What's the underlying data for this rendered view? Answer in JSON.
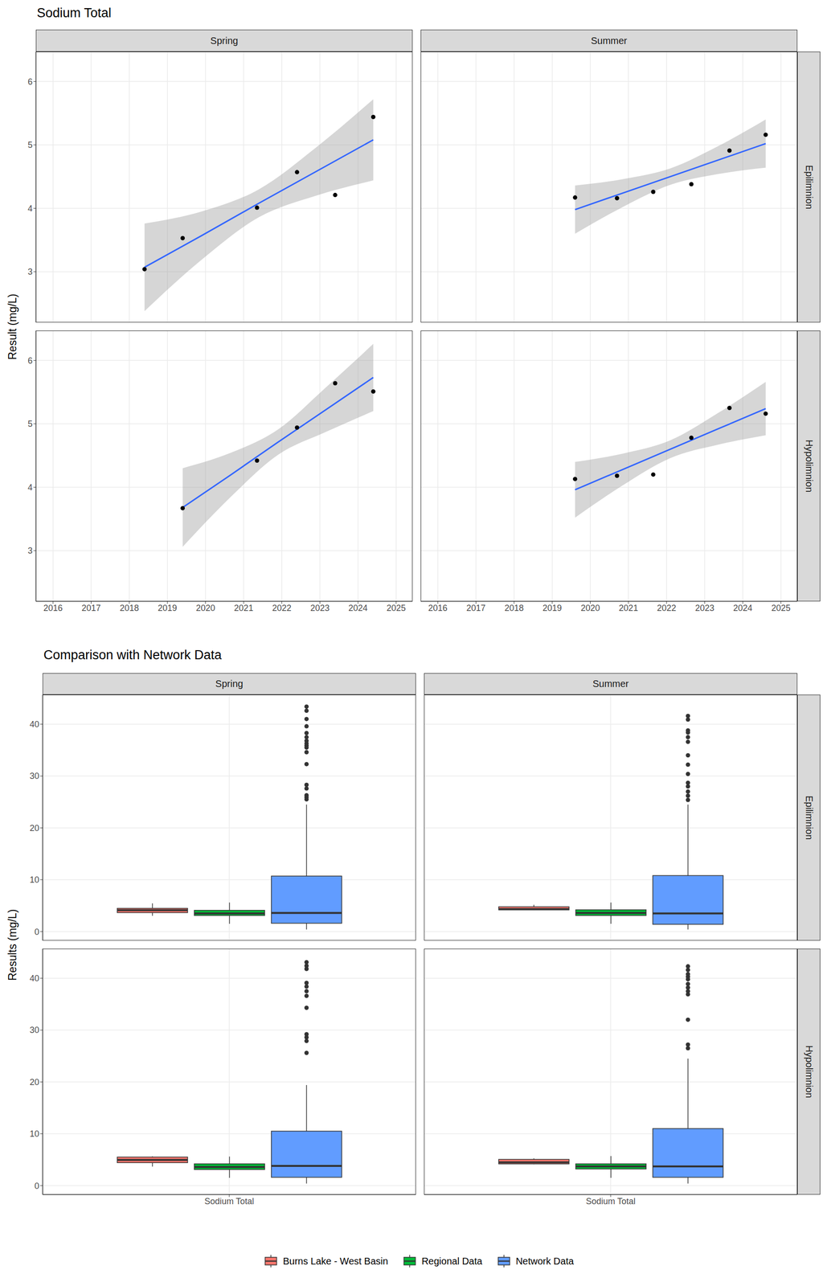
{
  "chart_data": [
    {
      "type": "scatter",
      "title": "Sodium Total",
      "y_label": "Result (mg/L)",
      "columns": [
        "Spring",
        "Summer"
      ],
      "rows": [
        "Epilimnion",
        "Hypolimnion"
      ],
      "xlim": [
        2015.55,
        2025.43
      ],
      "xticks": [
        2016,
        2017,
        2018,
        2019,
        2020,
        2021,
        2022,
        2023,
        2024,
        2025
      ],
      "ylim": [
        2.2,
        6.47
      ],
      "yticks": [
        3,
        4,
        5,
        6
      ],
      "grid": true,
      "panels": [
        {
          "column": "Spring",
          "row": "Epilimnion",
          "points": {
            "x": [
              2018.4,
              2019.4,
              2021.35,
              2022.4,
              2023.4,
              2024.4
            ],
            "y": [
              3.04,
              3.53,
              4.01,
              4.57,
              4.21,
              5.44
            ],
            "color": "#000000",
            "marker": "circle"
          },
          "fit": {
            "x": [
              2018.4,
              2019.9,
              2021.4,
              2022.9,
              2024.4
            ],
            "values": [
              3.07,
              3.57,
              4.08,
              4.58,
              5.08
            ],
            "lower": [
              2.38,
              3.19,
              3.86,
              4.2,
              4.44
            ],
            "upper": [
              3.76,
              3.95,
              4.3,
              4.96,
              5.72
            ],
            "color": "#3366FF"
          }
        },
        {
          "column": "Summer",
          "row": "Epilimnion",
          "points": {
            "x": [
              2019.6,
              2020.7,
              2021.65,
              2022.65,
              2023.65,
              2024.6
            ],
            "y": [
              4.17,
              4.16,
              4.26,
              4.38,
              4.91,
              5.16
            ],
            "color": "#000000",
            "marker": "circle"
          },
          "fit": {
            "x": [
              2019.6,
              2020.85,
              2022.1,
              2023.35,
              2024.6
            ],
            "values": [
              3.98,
              4.24,
              4.5,
              4.76,
              5.02
            ],
            "lower": [
              3.6,
              4.02,
              4.37,
              4.54,
              4.64
            ],
            "upper": [
              4.36,
              4.46,
              4.63,
              4.98,
              5.4
            ],
            "color": "#3366FF"
          }
        },
        {
          "column": "Spring",
          "row": "Hypolimnion",
          "points": {
            "x": [
              2019.4,
              2021.35,
              2022.4,
              2023.4,
              2024.4
            ],
            "y": [
              3.67,
              4.42,
              4.94,
              5.64,
              5.51
            ],
            "color": "#000000",
            "marker": "circle"
          },
          "fit": {
            "x": [
              2019.4,
              2020.65,
              2021.9,
              2023.15,
              2024.4
            ],
            "values": [
              3.68,
              4.19,
              4.71,
              5.22,
              5.73
            ],
            "lower": [
              3.06,
              3.84,
              4.51,
              4.87,
              5.2
            ],
            "upper": [
              4.3,
              4.54,
              4.91,
              5.57,
              6.26
            ],
            "color": "#3366FF"
          }
        },
        {
          "column": "Summer",
          "row": "Hypolimnion",
          "points": {
            "x": [
              2019.6,
              2020.7,
              2021.65,
              2022.65,
              2023.65,
              2024.6
            ],
            "y": [
              4.13,
              4.18,
              4.2,
              4.78,
              5.25,
              5.16
            ],
            "color": "#000000",
            "marker": "circle"
          },
          "fit": {
            "x": [
              2019.6,
              2020.85,
              2022.1,
              2023.35,
              2024.6
            ],
            "values": [
              3.96,
              4.28,
              4.6,
              4.92,
              5.24
            ],
            "lower": [
              3.52,
              4.03,
              4.46,
              4.67,
              4.82
            ],
            "upper": [
              4.4,
              4.53,
              4.74,
              5.17,
              5.66
            ],
            "color": "#3366FF"
          }
        }
      ]
    },
    {
      "type": "box",
      "title": "Comparison with Network Data",
      "y_label": "Results (mg/L)",
      "categories": [
        "Sodium Total"
      ],
      "series": [
        {
          "name": "Burns Lake - West Basin",
          "color": "#F8766D"
        },
        {
          "name": "Regional Data",
          "color": "#00BA38"
        },
        {
          "name": "Network Data",
          "color": "#619CFF"
        }
      ],
      "columns": [
        "Spring",
        "Summer"
      ],
      "rows": [
        "Epilimnion",
        "Hypolimnion"
      ],
      "ylim": [
        -1.74,
        45.7
      ],
      "yticks": [
        0,
        10,
        20,
        30,
        40
      ],
      "grid": true,
      "legend": "bottom",
      "panels": [
        {
          "column": "Spring",
          "row": "Epilimnion",
          "boxes": [
            {
              "min": 3.04,
              "q1": 3.65,
              "median": 4.11,
              "q3": 4.48,
              "max": 5.44,
              "outliers": []
            },
            {
              "min": 1.5,
              "q1": 3.1,
              "median": 3.5,
              "q3": 4.1,
              "max": 5.6,
              "outliers": []
            },
            {
              "min": 0.4,
              "q1": 1.6,
              "median": 3.6,
              "q3": 10.7,
              "max": 24.5,
              "outliers": [
                25.5,
                25.9,
                26.3,
                27.6,
                28.3,
                32.3,
                34.6,
                35.5,
                35.9,
                36.3,
                36.8,
                37.5,
                38.3,
                39.6,
                41.0,
                42.6,
                43.4
              ]
            }
          ]
        },
        {
          "column": "Summer",
          "row": "Epilimnion",
          "boxes": [
            {
              "min": 4.16,
              "q1": 4.19,
              "median": 4.32,
              "q3": 4.78,
              "max": 5.16,
              "outliers": []
            },
            {
              "min": 1.5,
              "q1": 3.1,
              "median": 3.6,
              "q3": 4.2,
              "max": 5.6,
              "outliers": []
            },
            {
              "min": 0.4,
              "q1": 1.4,
              "median": 3.5,
              "q3": 10.8,
              "max": 24.5,
              "outliers": [
                25.4,
                26.2,
                27.0,
                28.0,
                28.7,
                30.4,
                32.2,
                34.0,
                36.6,
                37.5,
                38.4,
                38.8,
                40.9,
                41.6
              ]
            }
          ]
        },
        {
          "column": "Spring",
          "row": "Hypolimnion",
          "boxes": [
            {
              "min": 3.67,
              "q1": 4.42,
              "median": 4.94,
              "q3": 5.51,
              "max": 5.64,
              "outliers": []
            },
            {
              "min": 1.5,
              "q1": 3.1,
              "median": 3.6,
              "q3": 4.2,
              "max": 5.6,
              "outliers": []
            },
            {
              "min": 0.4,
              "q1": 1.6,
              "median": 3.8,
              "q3": 10.5,
              "max": 19.4,
              "outliers": [
                25.6,
                27.9,
                28.6,
                29.2,
                34.3,
                36.6,
                37.5,
                38.4,
                39.1,
                41.8,
                42.4,
                43.1
              ]
            }
          ]
        },
        {
          "column": "Summer",
          "row": "Hypolimnion",
          "boxes": [
            {
              "min": 4.13,
              "q1": 4.19,
              "median": 4.49,
              "q3": 5.06,
              "max": 5.25,
              "outliers": []
            },
            {
              "min": 1.5,
              "q1": 3.2,
              "median": 3.7,
              "q3": 4.2,
              "max": 5.7,
              "outliers": []
            },
            {
              "min": 0.4,
              "q1": 1.6,
              "median": 3.7,
              "q3": 11.0,
              "max": 24.5,
              "outliers": [
                26.5,
                27.2,
                32.0,
                36.9,
                37.5,
                38.2,
                38.9,
                39.8,
                40.3,
                40.8,
                41.6,
                42.3
              ]
            }
          ]
        }
      ]
    }
  ]
}
